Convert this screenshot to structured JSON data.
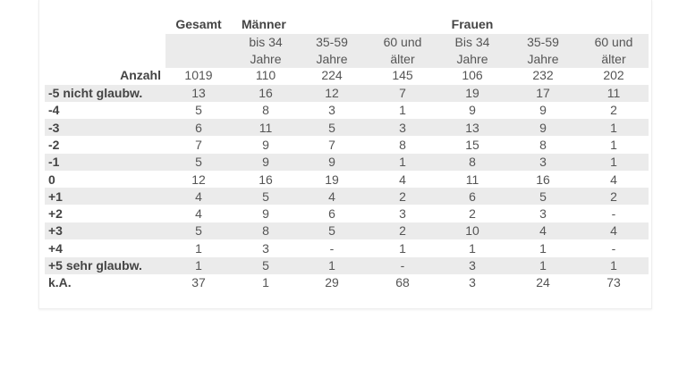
{
  "header": {
    "gesamt": "Gesamt",
    "maenner": "Männer",
    "frauen": "Frauen",
    "subheaders": [
      [
        "bis 34",
        "Jahre"
      ],
      [
        "35-59",
        "Jahre"
      ],
      [
        "60 und",
        "älter"
      ],
      [
        "Bis 34",
        "Jahre"
      ],
      [
        "35-59",
        "Jahre"
      ],
      [
        "60 und",
        "älter"
      ]
    ]
  },
  "anzahl": {
    "label": "Anzahl",
    "values": [
      "1019",
      "110",
      "224",
      "145",
      "106",
      "232",
      "202"
    ]
  },
  "rows": [
    {
      "label": "-5 nicht glaubw.",
      "values": [
        "13",
        "16",
        "12",
        "7",
        "19",
        "17",
        "11"
      ]
    },
    {
      "label": "-4",
      "values": [
        "5",
        "8",
        "3",
        "1",
        "9",
        "9",
        "2"
      ]
    },
    {
      "label": "-3",
      "values": [
        "6",
        "11",
        "5",
        "3",
        "13",
        "9",
        "1"
      ]
    },
    {
      "label": "-2",
      "values": [
        "7",
        "9",
        "7",
        "8",
        "15",
        "8",
        "1"
      ]
    },
    {
      "label": "-1",
      "values": [
        "5",
        "9",
        "9",
        "1",
        "8",
        "3",
        "1"
      ]
    },
    {
      "label": "0",
      "values": [
        "12",
        "16",
        "19",
        "4",
        "11",
        "16",
        "4"
      ]
    },
    {
      "label": "+1",
      "values": [
        "4",
        "5",
        "4",
        "2",
        "6",
        "5",
        "2"
      ]
    },
    {
      "label": "+2",
      "values": [
        "4",
        "9",
        "6",
        "3",
        "2",
        "3",
        "-"
      ]
    },
    {
      "label": "+3",
      "values": [
        "5",
        "8",
        "5",
        "2",
        "10",
        "4",
        "4"
      ]
    },
    {
      "label": "+4",
      "values": [
        "1",
        "3",
        "-",
        "1",
        "1",
        "1",
        "-"
      ]
    },
    {
      "label": "+5 sehr glaubw.",
      "values": [
        "1",
        "5",
        "1",
        "-",
        "3",
        "1",
        "1"
      ]
    },
    {
      "label": "k.A.",
      "values": [
        "37",
        "1",
        "29",
        "68",
        "3",
        "24",
        "73"
      ]
    }
  ]
}
